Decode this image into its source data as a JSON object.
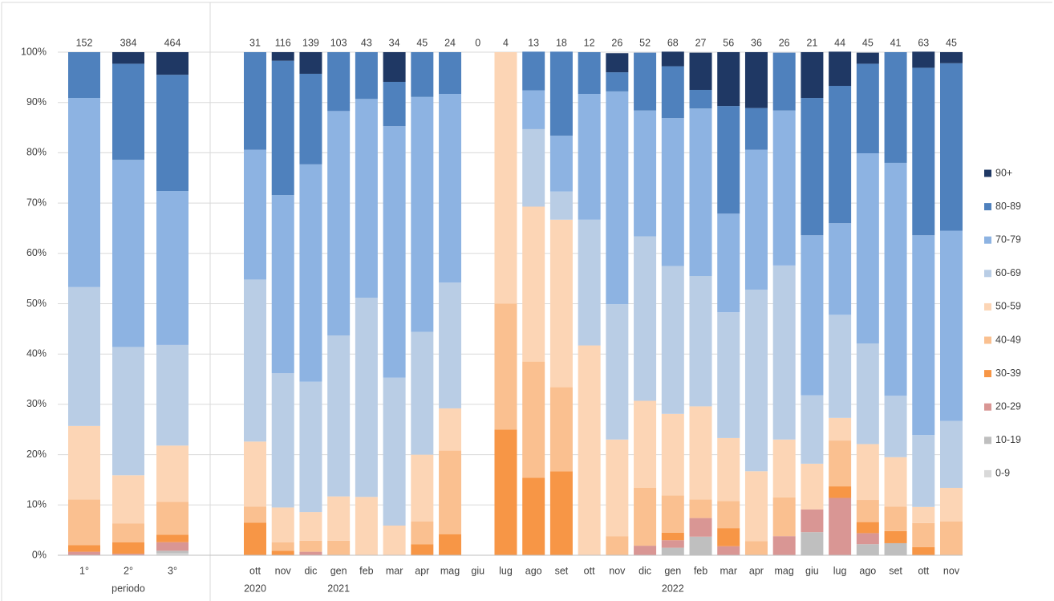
{
  "chart_data": {
    "type": "stacked_bar_100",
    "categories": [
      "1°",
      "2°",
      "3°",
      "ott",
      "nov",
      "dic",
      "gen",
      "feb",
      "mar",
      "apr",
      "mag",
      "giu",
      "lug",
      "ago",
      "set",
      "ott",
      "nov",
      "dic",
      "gen",
      "feb",
      "mar",
      "apr",
      "mag",
      "giu",
      "lug",
      "ago",
      "set",
      "ott",
      "nov"
    ],
    "sublabels": [
      null,
      "periodo",
      null,
      "2020",
      null,
      null,
      "2021",
      null,
      null,
      null,
      null,
      null,
      null,
      null,
      null,
      null,
      null,
      null,
      "2022",
      null,
      null,
      null,
      null,
      null,
      null,
      null,
      null,
      null,
      null
    ],
    "totals": [
      152,
      384,
      464,
      31,
      116,
      139,
      103,
      43,
      34,
      45,
      24,
      0,
      4,
      13,
      18,
      12,
      26,
      52,
      68,
      27,
      56,
      36,
      26,
      21,
      44,
      45,
      41,
      63,
      45
    ],
    "ylim": [
      0,
      100
    ],
    "yticks": [
      {
        "value": 0,
        "label": "0%"
      },
      {
        "value": 10,
        "label": "10%"
      },
      {
        "value": 20,
        "label": "20%"
      },
      {
        "value": 30,
        "label": "30%"
      },
      {
        "value": 40,
        "label": "40%"
      },
      {
        "value": 50,
        "label": "50%"
      },
      {
        "value": 60,
        "label": "60%"
      },
      {
        "value": 70,
        "label": "70%"
      },
      {
        "value": 80,
        "label": "80%"
      },
      {
        "value": 90,
        "label": "90%"
      },
      {
        "value": 100,
        "label": "100%"
      }
    ],
    "grid": true,
    "legend": "right",
    "series": [
      {
        "name": "0-9",
        "color": "#d9d9d9",
        "values": [
          0,
          0,
          0.4,
          0,
          0,
          0,
          0,
          0,
          0,
          0,
          0,
          0,
          0,
          0,
          0,
          0,
          0,
          0,
          0,
          0,
          0,
          0,
          0,
          0,
          0,
          0,
          0,
          0,
          0
        ]
      },
      {
        "name": "10-19",
        "color": "#bfbfbf",
        "values": [
          0,
          0,
          0.5,
          0,
          0,
          0,
          0,
          0,
          0,
          0,
          0,
          0,
          0,
          0,
          0,
          0,
          0,
          0,
          1.5,
          3.7,
          0,
          0,
          0,
          4.6,
          0,
          2.2,
          2.4,
          0,
          0
        ]
      },
      {
        "name": "20-29",
        "color": "#d99694",
        "values": [
          0.7,
          0.3,
          1.7,
          0,
          0,
          0.7,
          0,
          0,
          0,
          0,
          0,
          0,
          0,
          0,
          0,
          0,
          0,
          1.9,
          1.5,
          3.7,
          1.8,
          0,
          3.8,
          4.5,
          11.4,
          2.2,
          0,
          0,
          0
        ]
      },
      {
        "name": "30-39",
        "color": "#f79646",
        "values": [
          1.3,
          2.3,
          1.5,
          6.5,
          0.9,
          0,
          0,
          0,
          0,
          2.2,
          4.2,
          0,
          25,
          15.4,
          16.7,
          0,
          0,
          0,
          1.5,
          0,
          3.6,
          0,
          0,
          0,
          2.3,
          2.2,
          2.4,
          1.6,
          0
        ]
      },
      {
        "name": "40-49",
        "color": "#fac090",
        "values": [
          9.1,
          3.7,
          6.5,
          3.2,
          1.7,
          2.2,
          2.9,
          0,
          0,
          4.5,
          16.6,
          0,
          25,
          23.1,
          16.7,
          0,
          3.8,
          11.5,
          7.4,
          3.7,
          5.4,
          2.8,
          7.7,
          0,
          9.1,
          4.4,
          4.9,
          4.8,
          6.7
        ]
      },
      {
        "name": "50-59",
        "color": "#fcd5b5",
        "values": [
          14.6,
          9.6,
          11.2,
          12.9,
          6.9,
          5.7,
          8.8,
          11.6,
          5.9,
          13.3,
          8.4,
          0,
          50,
          30.8,
          33.3,
          41.7,
          19.2,
          17.3,
          16.2,
          18.5,
          12.5,
          13.9,
          11.5,
          9.1,
          4.5,
          11.1,
          9.8,
          3.2,
          6.7
        ]
      },
      {
        "name": "60-69",
        "color": "#b9cde5",
        "values": [
          27.6,
          25.5,
          20,
          32.2,
          26.7,
          25.9,
          32,
          39.6,
          29.4,
          24.4,
          25,
          0,
          0,
          15.4,
          5.6,
          25,
          26.9,
          32.7,
          29.4,
          25.9,
          25,
          36.1,
          34.6,
          13.6,
          20.5,
          20,
          12.2,
          14.3,
          13.3
        ]
      },
      {
        "name": "70-79",
        "color": "#8db3e2",
        "values": [
          37.6,
          37.2,
          30.6,
          25.8,
          35.4,
          43.2,
          44.6,
          39.5,
          50,
          46.7,
          37.5,
          0,
          0,
          7.7,
          11.1,
          25,
          42.3,
          25,
          29.4,
          33.3,
          19.6,
          27.8,
          30.8,
          31.8,
          18.2,
          37.8,
          46.3,
          39.7,
          37.8
        ]
      },
      {
        "name": "80-89",
        "color": "#4f81bd",
        "values": [
          9.1,
          19.1,
          23.1,
          19.4,
          26.7,
          18,
          11.7,
          9.3,
          8.8,
          8.9,
          8.3,
          0,
          0,
          7.7,
          16.7,
          8.3,
          3.8,
          11.5,
          10.3,
          3.7,
          21.4,
          8.3,
          11.5,
          27.3,
          27.3,
          17.8,
          22,
          33.3,
          33.3
        ]
      },
      {
        "name": "90+",
        "color": "#1f3864",
        "values": [
          0,
          2.3,
          4.5,
          0,
          1.7,
          4.3,
          0,
          0,
          5.9,
          0,
          0,
          0,
          0,
          0,
          0,
          0,
          3.8,
          0,
          2.9,
          7.4,
          10.7,
          11.1,
          0,
          9.1,
          6.8,
          2.2,
          0,
          3.2,
          2.2
        ]
      }
    ]
  }
}
